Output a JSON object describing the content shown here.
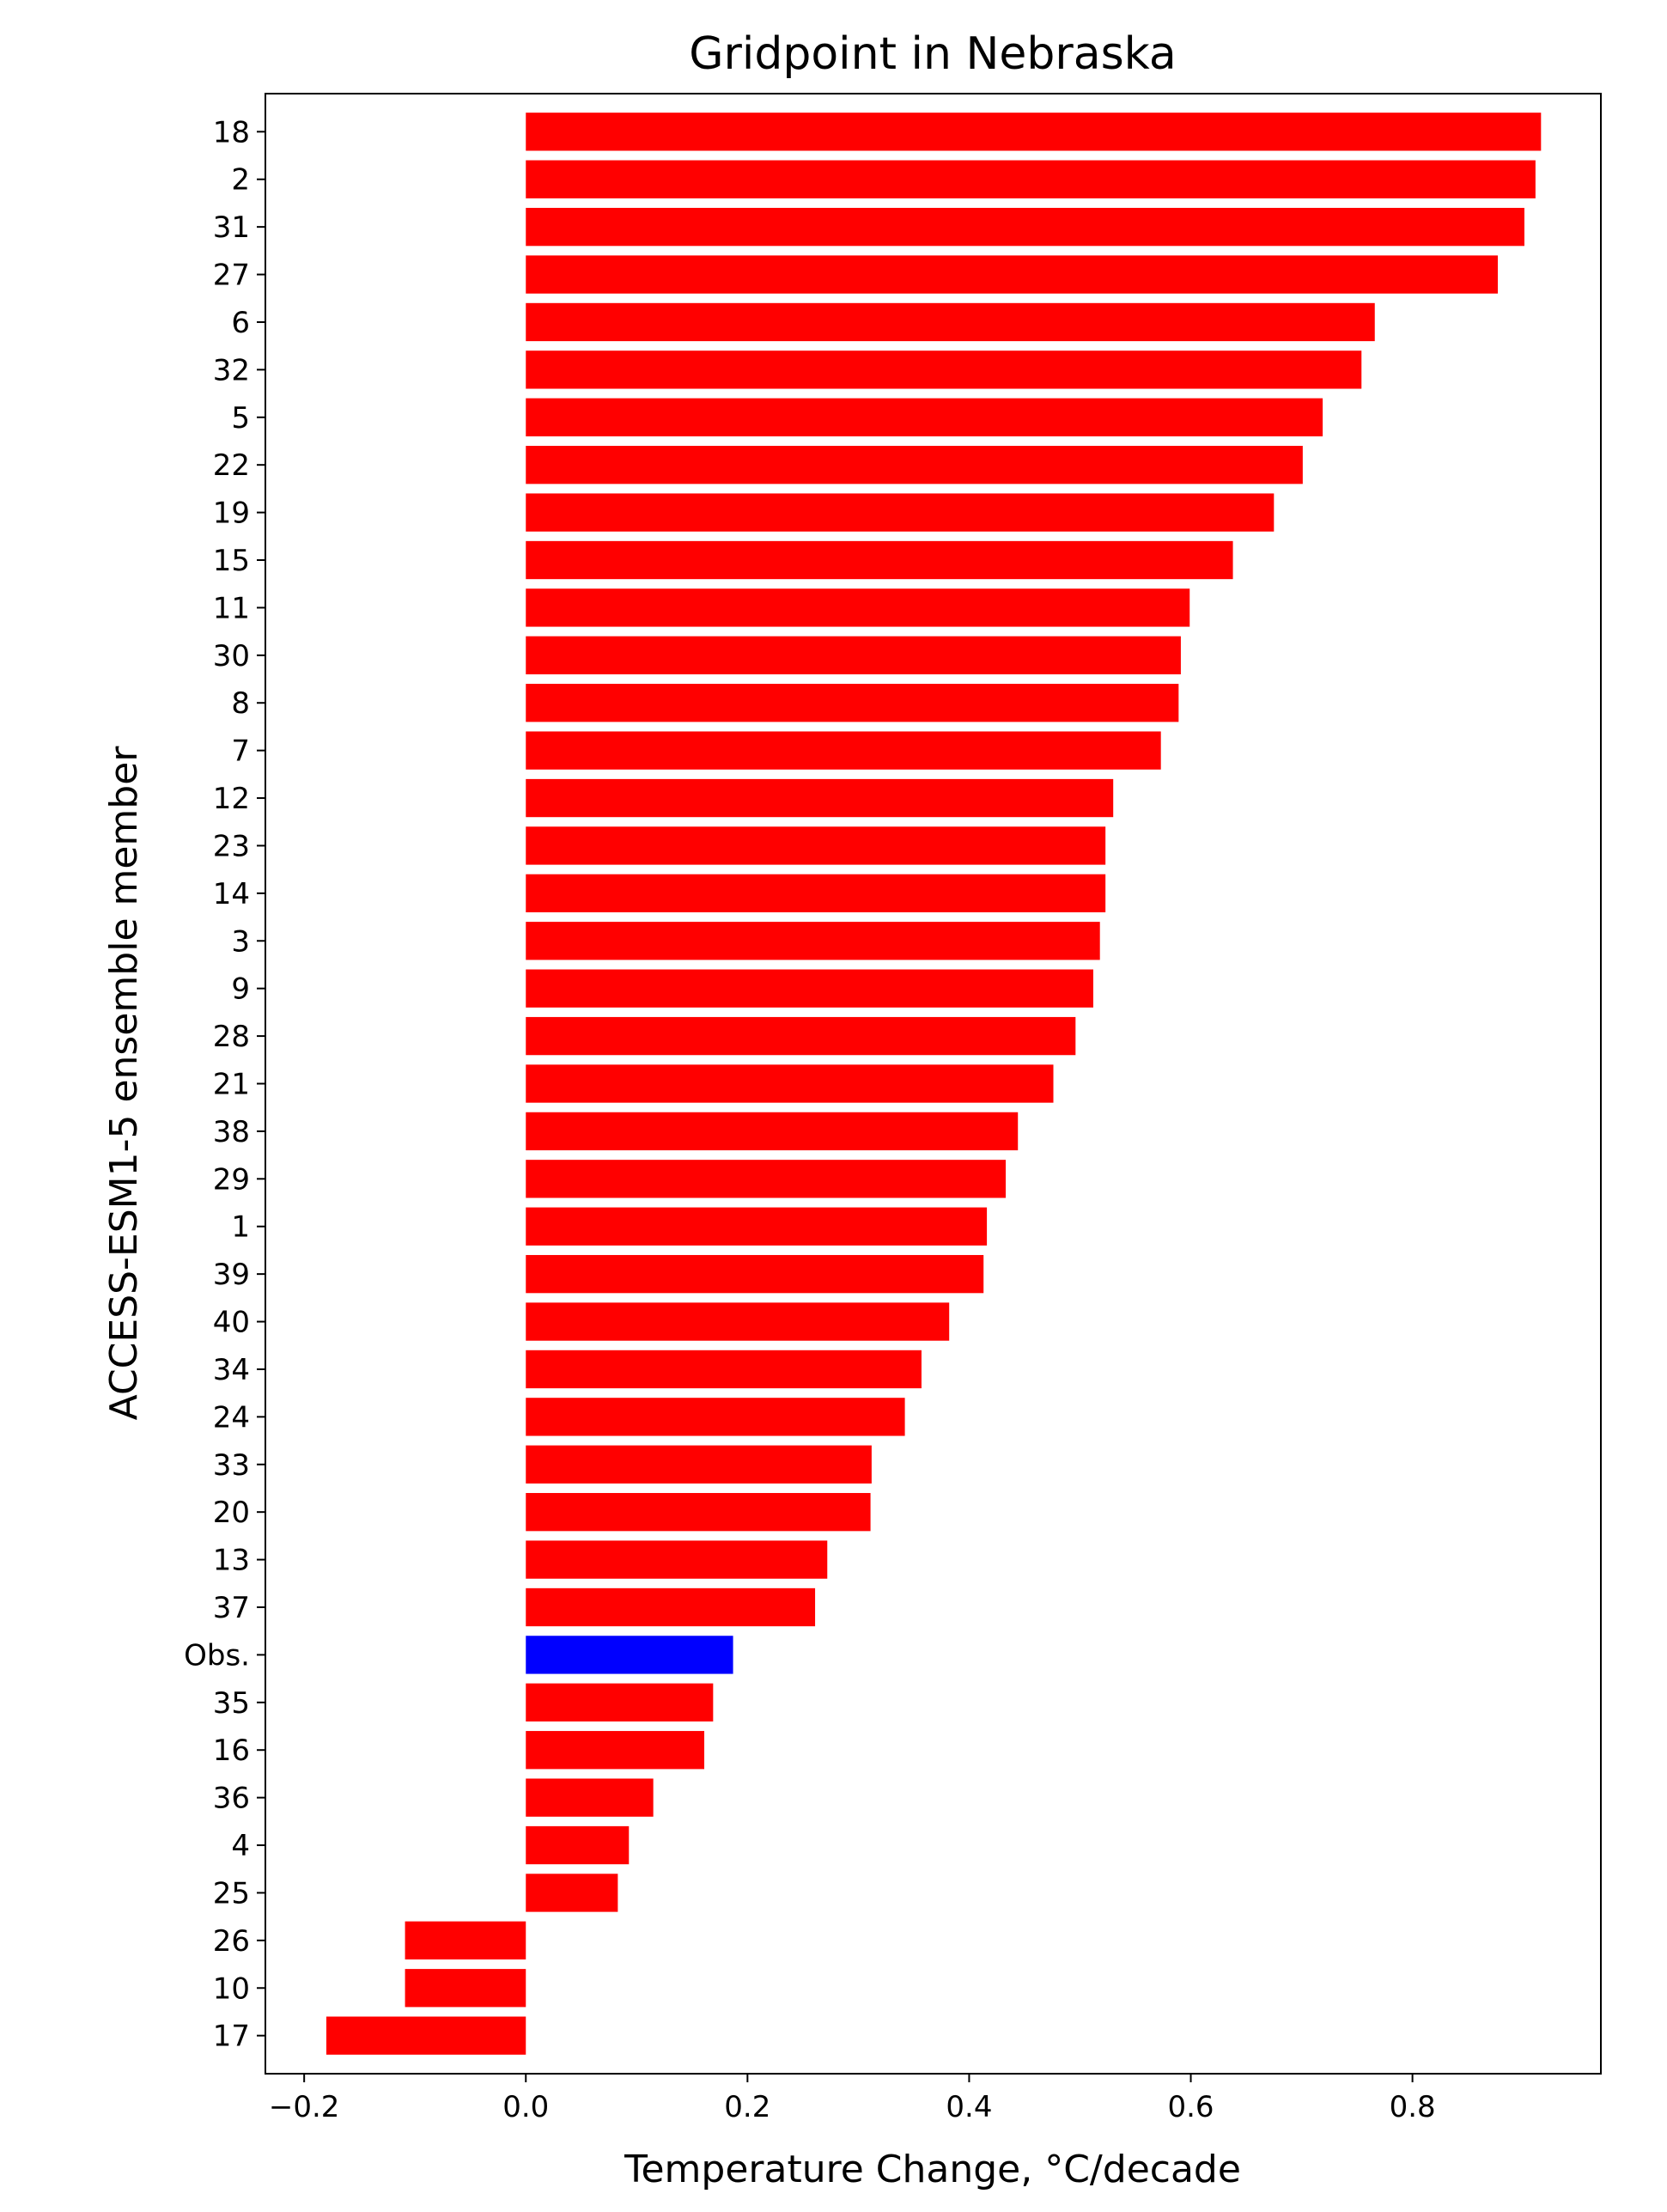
{
  "chart_data": {
    "type": "bar",
    "orientation": "horizontal",
    "title": "Gridpoint in Nebraska",
    "xlabel": "Temperature Change, °C/decade",
    "ylabel": "ACCESS-ESM1-5 ensemble member",
    "xlim": [
      -0.235,
      0.97
    ],
    "xticks": [
      -0.2,
      0.0,
      0.2,
      0.4,
      0.6,
      0.8
    ],
    "xtick_labels": [
      "−0.2",
      "0.0",
      "0.2",
      "0.4",
      "0.6",
      "0.8"
    ],
    "grid": false,
    "categories": [
      "18",
      "2",
      "31",
      "27",
      "6",
      "32",
      "5",
      "22",
      "19",
      "15",
      "11",
      "30",
      "8",
      "7",
      "12",
      "23",
      "14",
      "3",
      "9",
      "28",
      "21",
      "38",
      "29",
      "1",
      "39",
      "40",
      "34",
      "24",
      "33",
      "20",
      "13",
      "37",
      "Obs.",
      "35",
      "16",
      "36",
      "4",
      "25",
      "26",
      "10",
      "17"
    ],
    "values": [
      0.916,
      0.911,
      0.901,
      0.877,
      0.766,
      0.754,
      0.719,
      0.701,
      0.675,
      0.638,
      0.599,
      0.591,
      0.589,
      0.573,
      0.53,
      0.523,
      0.523,
      0.518,
      0.512,
      0.496,
      0.476,
      0.444,
      0.433,
      0.416,
      0.413,
      0.382,
      0.357,
      0.342,
      0.312,
      0.311,
      0.272,
      0.261,
      0.187,
      0.169,
      0.161,
      0.115,
      0.093,
      0.083,
      -0.109,
      -0.109,
      -0.18
    ],
    "colors": {
      "model": "#ff0000",
      "observed": "#0000ff"
    },
    "highlight_category": "Obs."
  }
}
